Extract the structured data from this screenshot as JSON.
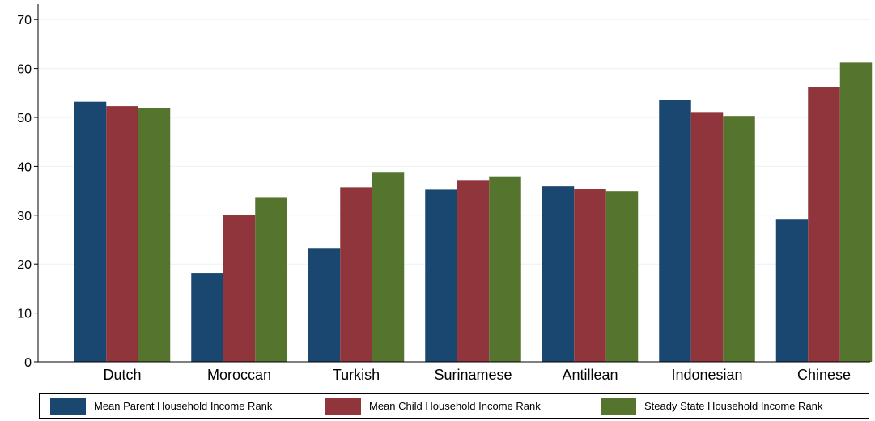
{
  "chart_data": {
    "type": "bar",
    "categories": [
      "Dutch",
      "Moroccan",
      "Turkish",
      "Surinamese",
      "Antillean",
      "Indonesian",
      "Chinese"
    ],
    "series": [
      {
        "name": "Mean Parent Household Income Rank",
        "color": "#1a476f",
        "values": [
          53.2,
          18.2,
          23.3,
          35.2,
          35.9,
          53.6,
          29.1
        ]
      },
      {
        "name": "Mean Child Household Income Rank",
        "color": "#90353b",
        "values": [
          52.3,
          30.1,
          35.7,
          37.2,
          35.4,
          51.1,
          56.2
        ]
      },
      {
        "name": "Steady State Household Income Rank",
        "color": "#55752f",
        "values": [
          51.9,
          33.7,
          38.7,
          37.8,
          34.9,
          50.3,
          61.2
        ]
      }
    ],
    "yticks": [
      "0",
      "10",
      "20",
      "30",
      "40",
      "50",
      "60",
      "70"
    ],
    "ylim": [
      0,
      73
    ],
    "grid": true,
    "legend_position": "bottom",
    "title": "",
    "xlabel": "",
    "ylabel": ""
  }
}
